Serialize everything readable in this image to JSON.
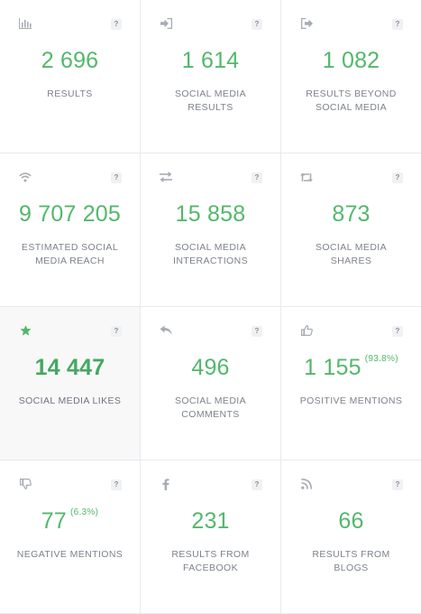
{
  "help_label": "?",
  "tiles": [
    {
      "id": "results",
      "icon": "bar-chart-icon",
      "value": "2 696",
      "pct": "",
      "label": "Results"
    },
    {
      "id": "social-media-results",
      "icon": "sign-in-icon",
      "value": "1 614",
      "pct": "",
      "label": "Social media results"
    },
    {
      "id": "results-beyond-social-media",
      "icon": "sign-out-icon",
      "value": "1 082",
      "pct": "",
      "label": "Results beyond social media"
    },
    {
      "id": "estimated-social-media-reach",
      "icon": "wifi-icon",
      "value": "9 707 205",
      "pct": "",
      "label": "Estimated social media reach"
    },
    {
      "id": "social-media-interactions",
      "icon": "exchange-icon",
      "value": "15 858",
      "pct": "",
      "label": "Social media interactions"
    },
    {
      "id": "social-media-shares",
      "icon": "retweet-icon",
      "value": "873",
      "pct": "",
      "label": "Social media shares"
    },
    {
      "id": "social-media-likes",
      "icon": "star-icon",
      "value": "14 447",
      "pct": "",
      "label": "Social media likes"
    },
    {
      "id": "social-media-comments",
      "icon": "reply-icon",
      "value": "496",
      "pct": "",
      "label": "Social media comments"
    },
    {
      "id": "positive-mentions",
      "icon": "thumbs-up-icon",
      "value": "1 155",
      "pct": "(93.8%)",
      "label": "Positive mentions"
    },
    {
      "id": "negative-mentions",
      "icon": "thumbs-down-icon",
      "value": "77",
      "pct": "(6.3%)",
      "label": "Negative mentions"
    },
    {
      "id": "results-from-facebook",
      "icon": "facebook-icon",
      "value": "231",
      "pct": "",
      "label": "Results from Facebook"
    },
    {
      "id": "results-from-blogs",
      "icon": "rss-icon",
      "value": "66",
      "pct": "",
      "label": "Results from blogs"
    }
  ],
  "colors": {
    "value": "#52b86c",
    "value_active": "#45a860",
    "label": "#7d828b",
    "icon": "#a7acb3",
    "icon_active": "#52b86c",
    "border": "#e7e9ed"
  }
}
